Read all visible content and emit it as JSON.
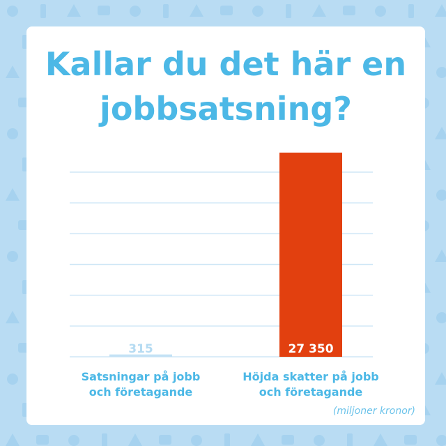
{
  "title_line1": "Kallar du det här en",
  "title_line2": "jobbsatsning?",
  "unit_note": "(miljoner kronor)",
  "colors": {
    "background": "#b9dcf3",
    "title": "#4cb8e6",
    "bar_small": "#c4e2f5",
    "bar_large": "#e2400f",
    "grid": "#cfe7f6"
  },
  "chart_data": {
    "type": "bar",
    "categories": [
      "Satsningar på jobb och företagande",
      "Höjda skatter på jobb och företagande"
    ],
    "values": [
      315,
      27350
    ],
    "value_labels": [
      "315",
      "27 350"
    ],
    "ylim": [
      0,
      27350
    ],
    "grid": true
  }
}
